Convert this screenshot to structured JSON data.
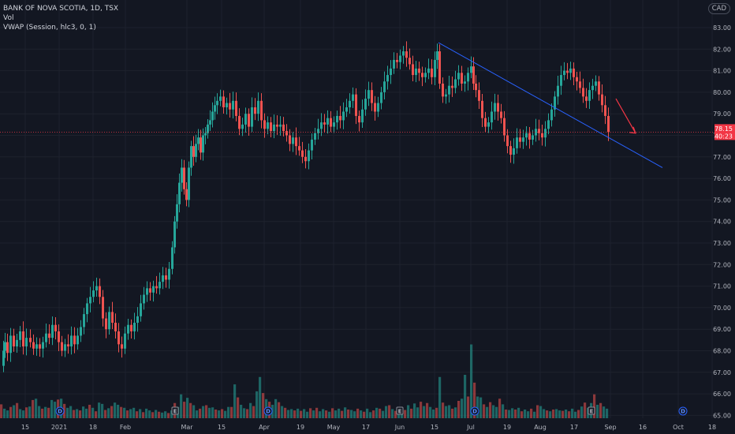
{
  "legend": {
    "symbol_line": "BANK OF NOVA SCOTIA, 1D, TSX",
    "vol_label": "Vol",
    "vwap_label": "VWAP (Session, hlc3, 0, 1)"
  },
  "currency_button": "CAD",
  "chart_data": {
    "type": "candlestick",
    "symbol": "BANK OF NOVA SCOTIA",
    "interval": "1D",
    "exchange": "TSX",
    "currency": "CAD",
    "ylim": [
      64.8,
      83.3
    ],
    "y_ticks": [
      "83.00",
      "82.00",
      "81.00",
      "80.00",
      "79.00",
      "78.00",
      "77.00",
      "76.00",
      "75.00",
      "74.00",
      "73.00",
      "72.00",
      "71.00",
      "70.00",
      "69.00",
      "68.00",
      "67.00",
      "66.00",
      "65.00"
    ],
    "x_ticks": [
      "15",
      "2021",
      "18",
      "Feb",
      "Mar",
      "15",
      "Apr",
      "19",
      "May",
      "17",
      "Jun",
      "15",
      "Jul",
      "19",
      "Aug",
      "17",
      "Sep",
      "16",
      "Oct",
      "18"
    ],
    "last_price_label": "78.15",
    "countdown_label": "40:23",
    "last_price": 78.15,
    "close_path": [
      [
        0,
        67.3
      ],
      [
        3,
        68.0
      ],
      [
        5,
        68.4
      ],
      [
        8,
        67.9
      ],
      [
        12,
        68.7
      ],
      [
        16,
        68.2
      ],
      [
        20,
        68.5
      ],
      [
        24,
        68.9
      ],
      [
        28,
        68.2
      ],
      [
        32,
        68.6
      ],
      [
        37,
        68.4
      ],
      [
        41,
        68.1
      ],
      [
        45,
        68.3
      ],
      [
        49,
        68.1
      ],
      [
        53,
        68.4
      ],
      [
        57,
        68.8
      ],
      [
        61,
        68.6
      ],
      [
        65,
        69.2
      ],
      [
        69,
        68.9
      ],
      [
        73,
        68.4
      ],
      [
        77,
        68.0
      ],
      [
        81,
        68.3
      ],
      [
        85,
        68.2
      ],
      [
        89,
        68.7
      ],
      [
        93,
        68.3
      ],
      [
        97,
        68.7
      ],
      [
        101,
        69.1
      ],
      [
        105,
        69.7
      ],
      [
        109,
        70.2
      ],
      [
        113,
        70.5
      ],
      [
        117,
        70.8
      ],
      [
        121,
        71.0
      ],
      [
        125,
        70.5
      ],
      [
        129,
        69.5
      ],
      [
        133,
        69.0
      ],
      [
        137,
        69.8
      ],
      [
        141,
        69.3
      ],
      [
        145,
        68.9
      ],
      [
        149,
        68.3
      ],
      [
        153,
        68.1
      ],
      [
        157,
        68.8
      ],
      [
        161,
        69.2
      ],
      [
        165,
        68.9
      ],
      [
        169,
        69.3
      ],
      [
        173,
        69.6
      ],
      [
        177,
        70.2
      ],
      [
        181,
        70.6
      ],
      [
        185,
        70.9
      ],
      [
        189,
        70.7
      ],
      [
        193,
        71.0
      ],
      [
        197,
        70.9
      ],
      [
        201,
        71.2
      ],
      [
        205,
        71.5
      ],
      [
        209,
        71.3
      ],
      [
        213,
        71.8
      ],
      [
        217,
        72.8
      ],
      [
        220,
        74.0
      ],
      [
        223,
        74.8
      ],
      [
        226,
        75.8
      ],
      [
        229,
        76.5
      ],
      [
        232,
        75.5
      ],
      [
        235,
        75.0
      ],
      [
        238,
        76.5
      ],
      [
        241,
        77.5
      ],
      [
        244,
        77.0
      ],
      [
        247,
        77.6
      ],
      [
        250,
        77.9
      ],
      [
        253,
        77.2
      ],
      [
        256,
        78.0
      ],
      [
        259,
        78.1
      ],
      [
        262,
        78.5
      ],
      [
        265,
        78.7
      ],
      [
        268,
        79.1
      ],
      [
        271,
        79.4
      ],
      [
        274,
        79.6
      ],
      [
        278,
        79.8
      ],
      [
        282,
        79.3
      ],
      [
        286,
        79.5
      ],
      [
        290,
        79.2
      ],
      [
        294,
        79.6
      ],
      [
        298,
        78.9
      ],
      [
        302,
        78.3
      ],
      [
        306,
        78.5
      ],
      [
        310,
        79.0
      ],
      [
        314,
        78.4
      ],
      [
        318,
        79.3
      ],
      [
        322,
        79.0
      ],
      [
        326,
        79.6
      ],
      [
        330,
        78.7
      ],
      [
        334,
        78.3
      ],
      [
        338,
        78.6
      ],
      [
        342,
        78.2
      ],
      [
        346,
        78.5
      ],
      [
        350,
        78.4
      ],
      [
        354,
        78.5
      ],
      [
        358,
        78.2
      ],
      [
        362,
        78.0
      ],
      [
        366,
        77.6
      ],
      [
        370,
        77.9
      ],
      [
        374,
        77.5
      ],
      [
        378,
        77.3
      ],
      [
        382,
        77.0
      ],
      [
        386,
        76.8
      ],
      [
        390,
        77.3
      ],
      [
        394,
        77.8
      ],
      [
        398,
        78.1
      ],
      [
        402,
        78.3
      ],
      [
        406,
        78.6
      ],
      [
        410,
        78.5
      ],
      [
        414,
        78.8
      ],
      [
        418,
        78.4
      ],
      [
        422,
        78.6
      ],
      [
        426,
        78.9
      ],
      [
        430,
        78.7
      ],
      [
        434,
        79.1
      ],
      [
        438,
        79.3
      ],
      [
        442,
        79.6
      ],
      [
        446,
        79.9
      ],
      [
        450,
        78.9
      ],
      [
        454,
        78.6
      ],
      [
        458,
        79.2
      ],
      [
        462,
        79.7
      ],
      [
        466,
        80.1
      ],
      [
        470,
        79.5
      ],
      [
        474,
        79.1
      ],
      [
        478,
        79.5
      ],
      [
        482,
        80.0
      ],
      [
        486,
        80.5
      ],
      [
        490,
        80.8
      ],
      [
        494,
        81.1
      ],
      [
        498,
        81.5
      ],
      [
        502,
        81.4
      ],
      [
        506,
        81.7
      ],
      [
        510,
        81.9
      ],
      [
        514,
        81.6
      ],
      [
        518,
        81.3
      ],
      [
        522,
        80.8
      ],
      [
        526,
        81.1
      ],
      [
        530,
        80.9
      ],
      [
        534,
        80.7
      ],
      [
        538,
        80.9
      ],
      [
        542,
        81.1
      ],
      [
        546,
        80.7
      ],
      [
        550,
        81.5
      ],
      [
        553,
        81.9
      ],
      [
        556,
        80.4
      ],
      [
        560,
        79.8
      ],
      [
        564,
        79.9
      ],
      [
        568,
        80.3
      ],
      [
        572,
        80.2
      ],
      [
        576,
        80.6
      ],
      [
        580,
        80.9
      ],
      [
        584,
        80.4
      ],
      [
        588,
        80.5
      ],
      [
        592,
        80.9
      ],
      [
        596,
        81.2
      ],
      [
        599,
        80.4
      ],
      [
        602,
        80.1
      ],
      [
        606,
        79.6
      ],
      [
        610,
        78.8
      ],
      [
        614,
        78.4
      ],
      [
        618,
        78.6
      ],
      [
        622,
        79.1
      ],
      [
        626,
        79.5
      ],
      [
        630,
        79.1
      ],
      [
        634,
        78.8
      ],
      [
        638,
        78.0
      ],
      [
        642,
        77.5
      ],
      [
        646,
        77.1
      ],
      [
        650,
        77.4
      ],
      [
        654,
        77.9
      ],
      [
        658,
        77.7
      ],
      [
        662,
        77.9
      ],
      [
        666,
        78.1
      ],
      [
        670,
        77.8
      ],
      [
        674,
        78.0
      ],
      [
        678,
        78.3
      ],
      [
        682,
        78.1
      ],
      [
        686,
        77.9
      ],
      [
        690,
        78.3
      ],
      [
        694,
        78.7
      ],
      [
        698,
        79.2
      ],
      [
        702,
        79.8
      ],
      [
        706,
        80.3
      ],
      [
        710,
        80.8
      ],
      [
        714,
        81.0
      ],
      [
        718,
        80.9
      ],
      [
        722,
        81.1
      ],
      [
        726,
        80.7
      ],
      [
        730,
        80.5
      ],
      [
        734,
        80.2
      ],
      [
        738,
        79.8
      ],
      [
        742,
        79.6
      ],
      [
        746,
        80.1
      ],
      [
        750,
        80.3
      ],
      [
        754,
        80.5
      ],
      [
        758,
        79.9
      ],
      [
        762,
        79.4
      ],
      [
        766,
        78.9
      ],
      [
        770,
        78.15
      ]
    ],
    "volume_profile": "daily volume bars, relative heights 0-1",
    "volume_bars": [
      [
        0,
        0.32
      ],
      [
        4,
        0.22
      ],
      [
        8,
        0.18
      ],
      [
        12,
        0.26
      ],
      [
        16,
        0.3
      ],
      [
        20,
        0.35
      ],
      [
        24,
        0.21
      ],
      [
        28,
        0.18
      ],
      [
        32,
        0.25
      ],
      [
        36,
        0.27
      ],
      [
        40,
        0.42
      ],
      [
        44,
        0.45
      ],
      [
        48,
        0.28
      ],
      [
        52,
        0.22
      ],
      [
        56,
        0.26
      ],
      [
        60,
        0.24
      ],
      [
        64,
        0.42
      ],
      [
        68,
        0.38
      ],
      [
        72,
        0.43
      ],
      [
        76,
        0.45
      ],
      [
        80,
        0.33
      ],
      [
        84,
        0.24
      ],
      [
        88,
        0.28
      ],
      [
        92,
        0.19
      ],
      [
        96,
        0.21
      ],
      [
        100,
        0.18
      ],
      [
        104,
        0.27
      ],
      [
        108,
        0.22
      ],
      [
        112,
        0.31
      ],
      [
        116,
        0.24
      ],
      [
        120,
        0.16
      ],
      [
        124,
        0.36
      ],
      [
        128,
        0.33
      ],
      [
        132,
        0.19
      ],
      [
        136,
        0.23
      ],
      [
        140,
        0.28
      ],
      [
        144,
        0.36
      ],
      [
        148,
        0.31
      ],
      [
        152,
        0.26
      ],
      [
        156,
        0.24
      ],
      [
        160,
        0.18
      ],
      [
        164,
        0.21
      ],
      [
        168,
        0.24
      ],
      [
        172,
        0.16
      ],
      [
        176,
        0.21
      ],
      [
        180,
        0.14
      ],
      [
        184,
        0.22
      ],
      [
        188,
        0.18
      ],
      [
        192,
        0.14
      ],
      [
        196,
        0.19
      ],
      [
        200,
        0.15
      ],
      [
        204,
        0.13
      ],
      [
        208,
        0.16
      ],
      [
        212,
        0.12
      ],
      [
        216,
        0.18
      ],
      [
        220,
        0.35
      ],
      [
        224,
        0.26
      ],
      [
        228,
        0.55
      ],
      [
        232,
        0.38
      ],
      [
        236,
        0.47
      ],
      [
        240,
        0.35
      ],
      [
        244,
        0.3
      ],
      [
        248,
        0.18
      ],
      [
        252,
        0.22
      ],
      [
        256,
        0.28
      ],
      [
        260,
        0.3
      ],
      [
        264,
        0.24
      ],
      [
        268,
        0.25
      ],
      [
        272,
        0.2
      ],
      [
        276,
        0.18
      ],
      [
        280,
        0.21
      ],
      [
        284,
        0.17
      ],
      [
        288,
        0.26
      ],
      [
        292,
        0.26
      ],
      [
        296,
        0.78
      ],
      [
        300,
        0.48
      ],
      [
        304,
        0.31
      ],
      [
        308,
        0.23
      ],
      [
        312,
        0.21
      ],
      [
        316,
        0.35
      ],
      [
        320,
        0.28
      ],
      [
        324,
        0.62
      ],
      [
        328,
        0.95
      ],
      [
        332,
        0.58
      ],
      [
        336,
        0.44
      ],
      [
        340,
        0.38
      ],
      [
        344,
        0.31
      ],
      [
        348,
        0.44
      ],
      [
        352,
        0.37
      ],
      [
        356,
        0.28
      ],
      [
        360,
        0.24
      ],
      [
        364,
        0.19
      ],
      [
        368,
        0.21
      ],
      [
        372,
        0.18
      ],
      [
        376,
        0.22
      ],
      [
        380,
        0.17
      ],
      [
        384,
        0.21
      ],
      [
        388,
        0.15
      ],
      [
        392,
        0.23
      ],
      [
        396,
        0.18
      ],
      [
        400,
        0.24
      ],
      [
        404,
        0.16
      ],
      [
        408,
        0.21
      ],
      [
        412,
        0.18
      ],
      [
        416,
        0.15
      ],
      [
        420,
        0.23
      ],
      [
        424,
        0.18
      ],
      [
        428,
        0.22
      ],
      [
        432,
        0.17
      ],
      [
        436,
        0.25
      ],
      [
        440,
        0.2
      ],
      [
        444,
        0.19
      ],
      [
        448,
        0.16
      ],
      [
        452,
        0.22
      ],
      [
        456,
        0.18
      ],
      [
        460,
        0.15
      ],
      [
        464,
        0.22
      ],
      [
        468,
        0.14
      ],
      [
        472,
        0.18
      ],
      [
        476,
        0.24
      ],
      [
        480,
        0.22
      ],
      [
        484,
        0.17
      ],
      [
        488,
        0.28
      ],
      [
        492,
        0.3
      ],
      [
        496,
        0.21
      ],
      [
        500,
        0.17
      ],
      [
        504,
        0.18
      ],
      [
        508,
        0.23
      ],
      [
        512,
        0.19
      ],
      [
        516,
        0.3
      ],
      [
        520,
        0.22
      ],
      [
        524,
        0.34
      ],
      [
        528,
        0.25
      ],
      [
        532,
        0.38
      ],
      [
        536,
        0.28
      ],
      [
        540,
        0.35
      ],
      [
        544,
        0.26
      ],
      [
        548,
        0.2
      ],
      [
        552,
        0.24
      ],
      [
        556,
        0.95
      ],
      [
        560,
        0.36
      ],
      [
        564,
        0.28
      ],
      [
        568,
        0.3
      ],
      [
        572,
        0.22
      ],
      [
        576,
        0.25
      ],
      [
        580,
        0.4
      ],
      [
        584,
        0.45
      ],
      [
        588,
        1.0
      ],
      [
        592,
        0.5
      ],
      [
        596,
        1.7
      ],
      [
        600,
        0.82
      ],
      [
        604,
        0.5
      ],
      [
        608,
        0.48
      ],
      [
        612,
        0.32
      ],
      [
        616,
        0.26
      ],
      [
        620,
        0.37
      ],
      [
        624,
        0.3
      ],
      [
        628,
        0.26
      ],
      [
        632,
        0.45
      ],
      [
        636,
        0.32
      ],
      [
        640,
        0.2
      ],
      [
        644,
        0.19
      ],
      [
        648,
        0.23
      ],
      [
        652,
        0.2
      ],
      [
        656,
        0.24
      ],
      [
        660,
        0.16
      ],
      [
        664,
        0.2
      ],
      [
        668,
        0.16
      ],
      [
        672,
        0.22
      ],
      [
        676,
        0.15
      ],
      [
        680,
        0.3
      ],
      [
        684,
        0.28
      ],
      [
        688,
        0.21
      ],
      [
        692,
        0.18
      ],
      [
        696,
        0.16
      ],
      [
        700,
        0.2
      ],
      [
        704,
        0.21
      ],
      [
        708,
        0.18
      ],
      [
        712,
        0.17
      ],
      [
        716,
        0.2
      ],
      [
        720,
        0.16
      ],
      [
        724,
        0.22
      ],
      [
        728,
        0.15
      ],
      [
        732,
        0.19
      ],
      [
        736,
        0.27
      ],
      [
        740,
        0.36
      ],
      [
        744,
        0.24
      ],
      [
        748,
        0.35
      ],
      [
        752,
        0.55
      ],
      [
        756,
        0.31
      ],
      [
        760,
        0.35
      ],
      [
        764,
        0.27
      ],
      [
        768,
        0.22
      ]
    ],
    "trendline": {
      "from": [
        "Jun 15",
        82.3
      ],
      "to": [
        "Sep 16",
        76.5
      ]
    },
    "arrow": {
      "from": [
        "Sep 1",
        79.7
      ],
      "to": [
        "Sep 13",
        78.1
      ],
      "color": "#f23645"
    },
    "event_markers": [
      {
        "x": 76,
        "label": "D"
      },
      {
        "x": 222,
        "label": "E"
      },
      {
        "x": 340,
        "label": "D"
      },
      {
        "x": 507,
        "label": "E"
      },
      {
        "x": 602,
        "label": "D"
      },
      {
        "x": 750,
        "label": "E"
      },
      {
        "x": 866,
        "label": "D"
      }
    ],
    "colors": {
      "up": "#26a69a",
      "down": "#ef5350",
      "background": "#131722",
      "grid": "#1e222d",
      "trendline": "#2962ff",
      "price_line": "#f23645",
      "axis_text": "#b2b5be"
    }
  }
}
